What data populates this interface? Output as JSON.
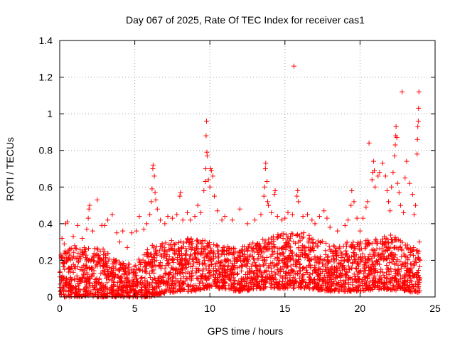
{
  "chart_data": {
    "type": "scatter",
    "title": "Day 067 of 2025, Rate Of TEC Index for receiver cas1",
    "xlabel": "GPS time / hours",
    "ylabel": "ROTI / TECUs",
    "xlim": [
      0,
      25
    ],
    "ylim": [
      0,
      1.4
    ],
    "xticks": [
      "0",
      "5",
      "10",
      "15",
      "20",
      "25"
    ],
    "yticks": [
      "0",
      "0.2",
      "0.4",
      "0.6",
      "0.8",
      "1",
      "1.2",
      "1.4"
    ],
    "grid": true,
    "marker": "+",
    "color": "#ff0000",
    "series": [
      {
        "name": "cas1 ROTI",
        "points": [
          [
            0.05,
            0.03
          ],
          [
            0.1,
            0.22
          ],
          [
            0.15,
            0.32
          ],
          [
            0.3,
            0.29
          ],
          [
            0.4,
            0.4
          ],
          [
            0.5,
            0.41
          ],
          [
            0.7,
            0.15
          ],
          [
            0.9,
            0.33
          ],
          [
            1.0,
            0.28
          ],
          [
            1.2,
            0.39
          ],
          [
            1.5,
            0.32
          ],
          [
            1.8,
            0.37
          ],
          [
            1.9,
            0.43
          ],
          [
            1.95,
            0.48
          ],
          [
            2.0,
            0.5
          ],
          [
            2.2,
            0.36
          ],
          [
            2.5,
            0.53
          ],
          [
            2.8,
            0.39
          ],
          [
            3.0,
            0.39
          ],
          [
            3.2,
            0.42
          ],
          [
            3.5,
            0.45
          ],
          [
            3.8,
            0.35
          ],
          [
            4.0,
            0.3
          ],
          [
            4.2,
            0.36
          ],
          [
            4.5,
            0.27
          ],
          [
            4.8,
            0.35
          ],
          [
            5.1,
            0.36
          ],
          [
            5.3,
            0.44
          ],
          [
            5.6,
            0.37
          ],
          [
            5.8,
            0.4
          ],
          [
            6.0,
            0.45
          ],
          [
            6.1,
            0.52
          ],
          [
            6.15,
            0.59
          ],
          [
            6.2,
            0.7
          ],
          [
            6.22,
            0.72
          ],
          [
            6.3,
            0.66
          ],
          [
            6.35,
            0.57
          ],
          [
            6.4,
            0.53
          ],
          [
            6.5,
            0.48
          ],
          [
            6.7,
            0.42
          ],
          [
            7.0,
            0.4
          ],
          [
            7.2,
            0.44
          ],
          [
            7.5,
            0.43
          ],
          [
            7.8,
            0.45
          ],
          [
            8.0,
            0.55
          ],
          [
            8.05,
            0.57
          ],
          [
            8.2,
            0.42
          ],
          [
            8.5,
            0.46
          ],
          [
            8.7,
            0.42
          ],
          [
            9.0,
            0.44
          ],
          [
            9.2,
            0.5
          ],
          [
            9.4,
            0.46
          ],
          [
            9.6,
            0.58
          ],
          [
            9.7,
            0.63
          ],
          [
            9.72,
            0.7
          ],
          [
            9.75,
            0.88
          ],
          [
            9.78,
            0.96
          ],
          [
            9.8,
            0.79
          ],
          [
            9.82,
            0.77
          ],
          [
            9.9,
            0.64
          ],
          [
            10.0,
            0.6
          ],
          [
            10.05,
            0.7
          ],
          [
            10.1,
            0.69
          ],
          [
            10.2,
            0.66
          ],
          [
            10.3,
            0.55
          ],
          [
            10.5,
            0.47
          ],
          [
            10.8,
            0.42
          ],
          [
            11.0,
            0.44
          ],
          [
            11.5,
            0.42
          ],
          [
            12.0,
            0.48
          ],
          [
            12.5,
            0.4
          ],
          [
            13.0,
            0.42
          ],
          [
            13.4,
            0.45
          ],
          [
            13.6,
            0.55
          ],
          [
            13.65,
            0.6
          ],
          [
            13.7,
            0.7
          ],
          [
            13.72,
            0.73
          ],
          [
            13.8,
            0.63
          ],
          [
            13.85,
            0.52
          ],
          [
            13.9,
            0.5
          ],
          [
            14.1,
            0.46
          ],
          [
            14.3,
            0.56
          ],
          [
            14.35,
            0.58
          ],
          [
            14.5,
            0.44
          ],
          [
            14.8,
            0.42
          ],
          [
            15.0,
            0.43
          ],
          [
            15.2,
            0.46
          ],
          [
            15.5,
            0.45
          ],
          [
            15.6,
            1.26
          ],
          [
            15.8,
            0.55
          ],
          [
            15.85,
            0.58
          ],
          [
            15.9,
            0.52
          ],
          [
            16.2,
            0.44
          ],
          [
            16.5,
            0.45
          ],
          [
            16.8,
            0.42
          ],
          [
            17.0,
            0.4
          ],
          [
            17.3,
            0.44
          ],
          [
            17.6,
            0.47
          ],
          [
            17.8,
            0.43
          ],
          [
            18.0,
            0.38
          ],
          [
            18.5,
            0.36
          ],
          [
            19.0,
            0.39
          ],
          [
            19.2,
            0.42
          ],
          [
            19.4,
            0.5
          ],
          [
            19.45,
            0.58
          ],
          [
            19.6,
            0.52
          ],
          [
            19.8,
            0.43
          ],
          [
            20.0,
            0.36
          ],
          [
            20.2,
            0.43
          ],
          [
            20.4,
            0.49
          ],
          [
            20.5,
            0.52
          ],
          [
            20.6,
            0.84
          ],
          [
            20.8,
            0.64
          ],
          [
            20.85,
            0.68
          ],
          [
            20.9,
            0.74
          ],
          [
            20.95,
            0.69
          ],
          [
            21.0,
            0.6
          ],
          [
            21.2,
            0.66
          ],
          [
            21.3,
            0.68
          ],
          [
            21.5,
            0.73
          ],
          [
            21.7,
            0.66
          ],
          [
            21.8,
            0.58
          ],
          [
            21.9,
            0.52
          ],
          [
            22.0,
            0.47
          ],
          [
            22.1,
            0.6
          ],
          [
            22.2,
            0.68
          ],
          [
            22.3,
            0.77
          ],
          [
            22.35,
            0.83
          ],
          [
            22.38,
            0.88
          ],
          [
            22.4,
            0.93
          ],
          [
            22.45,
            0.87
          ],
          [
            22.5,
            0.62
          ],
          [
            22.6,
            0.57
          ],
          [
            22.7,
            0.5
          ],
          [
            22.8,
            1.12
          ],
          [
            22.9,
            0.46
          ],
          [
            23.0,
            0.65
          ],
          [
            23.1,
            0.74
          ],
          [
            23.3,
            0.62
          ],
          [
            23.5,
            0.56
          ],
          [
            23.6,
            0.45
          ],
          [
            23.7,
            0.5
          ],
          [
            23.8,
            0.78
          ],
          [
            23.82,
            0.86
          ],
          [
            23.85,
            0.93
          ],
          [
            23.88,
            0.96
          ],
          [
            23.9,
            1.03
          ],
          [
            23.92,
            1.12
          ],
          [
            23.95,
            0.3
          ],
          [
            24.0,
            0.2
          ]
        ],
        "baseline_band": [
          [
            0,
            0.0,
            0.25
          ],
          [
            1,
            0.0,
            0.27
          ],
          [
            2,
            0.0,
            0.28
          ],
          [
            3,
            0.0,
            0.26
          ],
          [
            4,
            0.0,
            0.2
          ],
          [
            5,
            0.0,
            0.18
          ],
          [
            6,
            0.0,
            0.28
          ],
          [
            7,
            0.02,
            0.3
          ],
          [
            8,
            0.03,
            0.32
          ],
          [
            9,
            0.03,
            0.32
          ],
          [
            10,
            0.05,
            0.3
          ],
          [
            11,
            0.04,
            0.28
          ],
          [
            12,
            0.03,
            0.27
          ],
          [
            13,
            0.04,
            0.3
          ],
          [
            14,
            0.05,
            0.33
          ],
          [
            15,
            0.04,
            0.35
          ],
          [
            16,
            0.05,
            0.36
          ],
          [
            17,
            0.04,
            0.33
          ],
          [
            18,
            0.03,
            0.28
          ],
          [
            19,
            0.03,
            0.3
          ],
          [
            20,
            0.03,
            0.3
          ],
          [
            21,
            0.04,
            0.32
          ],
          [
            22,
            0.04,
            0.34
          ],
          [
            23,
            0.03,
            0.3
          ],
          [
            24,
            0.02,
            0.25
          ]
        ]
      }
    ]
  }
}
